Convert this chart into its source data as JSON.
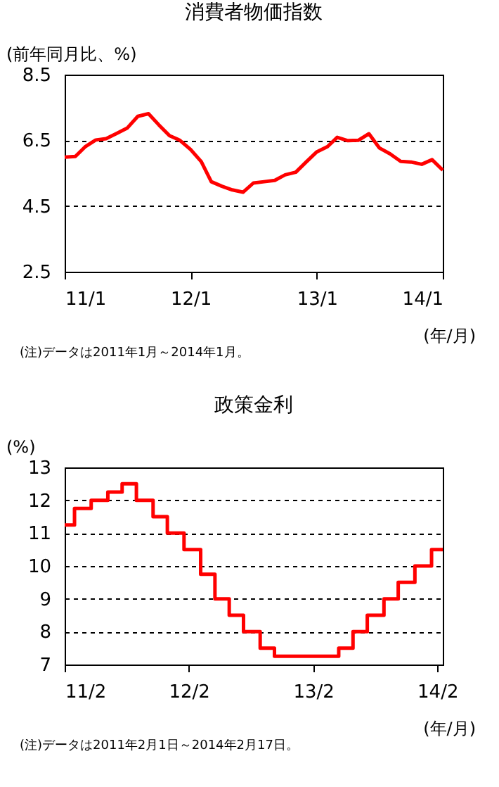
{
  "chart_data": [
    {
      "type": "line",
      "title": "消費者物価指数",
      "ylabel": "(前年同月比、%)",
      "xlabel": "(年/月)",
      "annotations": [
        "(注)データは2011年1月～2014年1月。"
      ],
      "grid": "y",
      "legend": false,
      "marker": "none",
      "line_style": "solid",
      "xlim": [
        "2011-01",
        "2014-01"
      ],
      "xticks": [
        {
          "value": "2011-01",
          "label": "11/1"
        },
        {
          "value": "2012-01",
          "label": "12/1"
        },
        {
          "value": "2013-01",
          "label": "13/1"
        },
        {
          "value": "2014-01",
          "label": "14/1"
        }
      ],
      "ylim": [
        2.5,
        8.5
      ],
      "yticks": [
        2.5,
        4.5,
        6.5,
        8.5
      ],
      "x": [
        "2011-01",
        "2011-02",
        "2011-03",
        "2011-04",
        "2011-05",
        "2011-06",
        "2011-07",
        "2011-08",
        "2011-09",
        "2011-10",
        "2011-11",
        "2011-12",
        "2012-01",
        "2012-02",
        "2012-03",
        "2012-04",
        "2012-05",
        "2012-06",
        "2012-07",
        "2012-08",
        "2012-09",
        "2012-10",
        "2012-11",
        "2012-12",
        "2013-01",
        "2013-02",
        "2013-03",
        "2013-04",
        "2013-05",
        "2013-06",
        "2013-07",
        "2013-08",
        "2013-09",
        "2013-10",
        "2013-11",
        "2013-12",
        "2014-01"
      ],
      "series": [
        {
          "color": "#ff0000",
          "values": [
            5.99,
            6.01,
            6.3,
            6.51,
            6.55,
            6.71,
            6.87,
            7.23,
            7.31,
            6.97,
            6.64,
            6.5,
            6.22,
            5.85,
            5.24,
            5.1,
            4.99,
            4.92,
            5.2,
            5.24,
            5.28,
            5.45,
            5.53,
            5.84,
            6.15,
            6.31,
            6.59,
            6.49,
            6.5,
            6.7,
            6.27,
            6.09,
            5.86,
            5.84,
            5.77,
            5.91,
            5.59
          ]
        }
      ]
    },
    {
      "type": "step",
      "title": "政策金利",
      "ylabel": "(%)",
      "xlabel": "(年/月)",
      "annotations": [
        "(注)データは2011年2月1日～2014年2月17日。"
      ],
      "grid": "y",
      "legend": false,
      "marker": "none",
      "line_style": "solid",
      "xlim": [
        "2011-02-01",
        "2014-02-17"
      ],
      "xticks": [
        {
          "value": "2011-02-01",
          "label": "11/2"
        },
        {
          "value": "2012-02-01",
          "label": "12/2"
        },
        {
          "value": "2013-02-01",
          "label": "13/2"
        },
        {
          "value": "2014-02-01",
          "label": "14/2"
        }
      ],
      "ylim": [
        7,
        13
      ],
      "yticks": [
        7,
        8,
        9,
        10,
        11,
        12,
        13
      ],
      "x": [
        "2011-02-01",
        "2011-03-02",
        "2011-04-20",
        "2011-06-08",
        "2011-07-20",
        "2011-08-31",
        "2011-10-19",
        "2011-11-30",
        "2012-01-18",
        "2012-03-07",
        "2012-04-18",
        "2012-05-30",
        "2012-07-11",
        "2012-08-29",
        "2012-10-10",
        "2013-04-17",
        "2013-05-29",
        "2013-07-10",
        "2013-08-28",
        "2013-10-09",
        "2013-11-27",
        "2014-01-15",
        "2014-02-17"
      ],
      "series": [
        {
          "color": "#ff0000",
          "values": [
            11.25,
            11.75,
            12,
            12.25,
            12.5,
            12,
            11.5,
            11,
            10.5,
            9.75,
            9,
            8.5,
            8,
            7.5,
            7.25,
            7.5,
            8,
            8.5,
            9,
            9.5,
            10,
            10.5,
            10.5
          ]
        }
      ]
    }
  ]
}
